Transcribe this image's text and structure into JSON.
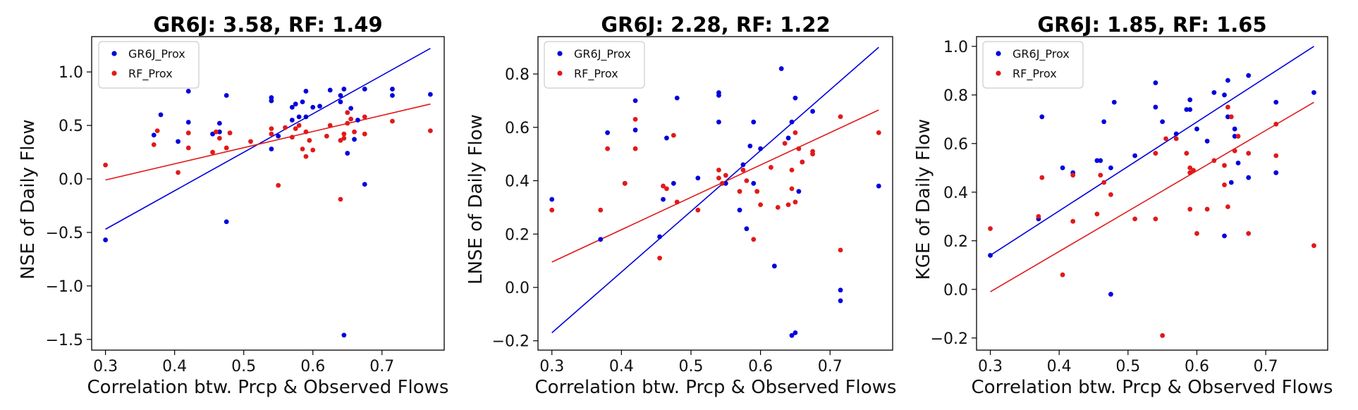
{
  "chart_data": [
    {
      "type": "scatter",
      "title": "GR6J: 3.58, RF: 1.49",
      "xlabel": "Correlation btw. Prcp & Observed Flows",
      "ylabel": "NSE of Daily Flow",
      "xlim": [
        0.28,
        0.79
      ],
      "ylim": [
        -1.6,
        1.33
      ],
      "xticks": [
        0.3,
        0.4,
        0.5,
        0.6,
        0.7
      ],
      "xtick_labels": [
        "0.3",
        "0.4",
        "0.5",
        "0.6",
        "0.7"
      ],
      "yticks": [
        -1.5,
        -1.0,
        -0.5,
        0.0,
        0.5,
        1.0
      ],
      "ytick_labels": [
        "−1.5",
        "−1.0",
        "−0.5",
        "0.0",
        "0.5",
        "1.0"
      ],
      "legend_position": "top-left",
      "series": [
        {
          "name": "GR6J_Prox",
          "color": "#0000dd",
          "points": [
            [
              0.3,
              -0.57
            ],
            [
              0.37,
              0.41
            ],
            [
              0.38,
              0.6
            ],
            [
              0.405,
              0.35
            ],
            [
              0.42,
              0.53
            ],
            [
              0.42,
              0.82
            ],
            [
              0.455,
              0.42
            ],
            [
              0.465,
              0.44
            ],
            [
              0.465,
              0.52
            ],
            [
              0.475,
              -0.4
            ],
            [
              0.475,
              0.78
            ],
            [
              0.54,
              0.76
            ],
            [
              0.54,
              0.73
            ],
            [
              0.54,
              0.28
            ],
            [
              0.55,
              0.4
            ],
            [
              0.57,
              0.55
            ],
            [
              0.57,
              0.67
            ],
            [
              0.575,
              0.7
            ],
            [
              0.58,
              0.58
            ],
            [
              0.585,
              0.72
            ],
            [
              0.59,
              0.82
            ],
            [
              0.59,
              0.58
            ],
            [
              0.6,
              0.67
            ],
            [
              0.61,
              0.68
            ],
            [
              0.625,
              0.83
            ],
            [
              0.64,
              0.78
            ],
            [
              0.64,
              0.72
            ],
            [
              0.645,
              -1.46
            ],
            [
              0.645,
              0.84
            ],
            [
              0.65,
              0.24
            ],
            [
              0.655,
              0.66
            ],
            [
              0.66,
              0.37
            ],
            [
              0.665,
              0.55
            ],
            [
              0.675,
              0.84
            ],
            [
              0.675,
              -0.05
            ],
            [
              0.715,
              0.78
            ],
            [
              0.715,
              0.84
            ],
            [
              0.77,
              0.79
            ]
          ]
        },
        {
          "name": "RF_Prox",
          "color": "#e11919",
          "points": [
            [
              0.3,
              0.13
            ],
            [
              0.37,
              0.32
            ],
            [
              0.375,
              0.45
            ],
            [
              0.405,
              0.06
            ],
            [
              0.42,
              0.43
            ],
            [
              0.42,
              0.29
            ],
            [
              0.455,
              0.25
            ],
            [
              0.46,
              0.44
            ],
            [
              0.465,
              0.38
            ],
            [
              0.475,
              0.29
            ],
            [
              0.48,
              0.43
            ],
            [
              0.51,
              0.35
            ],
            [
              0.54,
              0.47
            ],
            [
              0.54,
              0.42
            ],
            [
              0.55,
              -0.06
            ],
            [
              0.56,
              0.48
            ],
            [
              0.57,
              0.39
            ],
            [
              0.575,
              0.47
            ],
            [
              0.58,
              0.5
            ],
            [
              0.585,
              0.28
            ],
            [
              0.59,
              0.21
            ],
            [
              0.59,
              0.44
            ],
            [
              0.595,
              0.36
            ],
            [
              0.6,
              0.27
            ],
            [
              0.62,
              0.4
            ],
            [
              0.625,
              0.5
            ],
            [
              0.64,
              -0.19
            ],
            [
              0.64,
              0.36
            ],
            [
              0.645,
              0.42
            ],
            [
              0.645,
              0.38
            ],
            [
              0.65,
              0.52
            ],
            [
              0.65,
              0.62
            ],
            [
              0.655,
              0.56
            ],
            [
              0.66,
              0.44
            ],
            [
              0.675,
              0.42
            ],
            [
              0.675,
              0.58
            ],
            [
              0.715,
              0.54
            ],
            [
              0.77,
              0.45
            ]
          ]
        }
      ],
      "fit_lines": [
        {
          "series": "GR6J_Prox",
          "color": "#0000dd",
          "x": [
            0.3,
            0.77
          ],
          "y": [
            -0.47,
            1.22
          ]
        },
        {
          "series": "RF_Prox",
          "color": "#e11919",
          "x": [
            0.3,
            0.77
          ],
          "y": [
            -0.01,
            0.7
          ]
        }
      ]
    },
    {
      "type": "scatter",
      "title": "GR6J: 2.28, RF: 1.22",
      "xlabel": "Correlation btw. Prcp & Observed Flows",
      "ylabel": "LNSE of Daily Flow",
      "xlim": [
        0.28,
        0.79
      ],
      "ylim": [
        -0.235,
        0.94
      ],
      "xticks": [
        0.3,
        0.4,
        0.5,
        0.6,
        0.7
      ],
      "xtick_labels": [
        "0.3",
        "0.4",
        "0.5",
        "0.6",
        "0.7"
      ],
      "yticks": [
        -0.2,
        0.0,
        0.2,
        0.4,
        0.6,
        0.8
      ],
      "ytick_labels": [
        "−0.2",
        "0.0",
        "0.2",
        "0.4",
        "0.6",
        "0.8"
      ],
      "legend_position": "top-left",
      "series": [
        {
          "name": "GR6J_Prox",
          "color": "#0000dd",
          "points": [
            [
              0.3,
              0.33
            ],
            [
              0.37,
              0.18
            ],
            [
              0.38,
              0.58
            ],
            [
              0.405,
              0.39
            ],
            [
              0.42,
              0.59
            ],
            [
              0.42,
              0.7
            ],
            [
              0.455,
              0.19
            ],
            [
              0.46,
              0.33
            ],
            [
              0.465,
              0.56
            ],
            [
              0.475,
              0.39
            ],
            [
              0.48,
              0.71
            ],
            [
              0.51,
              0.41
            ],
            [
              0.54,
              0.73
            ],
            [
              0.54,
              0.72
            ],
            [
              0.54,
              0.62
            ],
            [
              0.55,
              0.39
            ],
            [
              0.57,
              0.29
            ],
            [
              0.575,
              0.46
            ],
            [
              0.58,
              0.22
            ],
            [
              0.585,
              0.53
            ],
            [
              0.59,
              0.62
            ],
            [
              0.59,
              0.39
            ],
            [
              0.6,
              0.52
            ],
            [
              0.62,
              0.08
            ],
            [
              0.63,
              0.82
            ],
            [
              0.64,
              0.56
            ],
            [
              0.645,
              -0.18
            ],
            [
              0.645,
              0.62
            ],
            [
              0.65,
              -0.17
            ],
            [
              0.65,
              0.71
            ],
            [
              0.655,
              0.36
            ],
            [
              0.66,
              0.47
            ],
            [
              0.675,
              0.66
            ],
            [
              0.715,
              -0.01
            ],
            [
              0.715,
              -0.05
            ],
            [
              0.77,
              0.38
            ]
          ]
        },
        {
          "name": "RF_Prox",
          "color": "#e11919",
          "points": [
            [
              0.3,
              0.29
            ],
            [
              0.37,
              0.29
            ],
            [
              0.38,
              0.52
            ],
            [
              0.405,
              0.39
            ],
            [
              0.42,
              0.63
            ],
            [
              0.42,
              0.52
            ],
            [
              0.455,
              0.11
            ],
            [
              0.46,
              0.38
            ],
            [
              0.465,
              0.37
            ],
            [
              0.475,
              0.57
            ],
            [
              0.48,
              0.32
            ],
            [
              0.51,
              0.29
            ],
            [
              0.54,
              0.44
            ],
            [
              0.54,
              0.41
            ],
            [
              0.545,
              0.39
            ],
            [
              0.55,
              0.42
            ],
            [
              0.57,
              0.36
            ],
            [
              0.575,
              0.44
            ],
            [
              0.58,
              0.4
            ],
            [
              0.59,
              0.18
            ],
            [
              0.595,
              0.36
            ],
            [
              0.6,
              0.31
            ],
            [
              0.615,
              0.45
            ],
            [
              0.625,
              0.3
            ],
            [
              0.635,
              0.54
            ],
            [
              0.64,
              0.31
            ],
            [
              0.645,
              0.37
            ],
            [
              0.645,
              0.44
            ],
            [
              0.65,
              0.32
            ],
            [
              0.65,
              0.58
            ],
            [
              0.655,
              0.52
            ],
            [
              0.66,
              0.47
            ],
            [
              0.675,
              0.5
            ],
            [
              0.675,
              0.51
            ],
            [
              0.715,
              0.64
            ],
            [
              0.715,
              0.14
            ],
            [
              0.77,
              0.58
            ]
          ]
        }
      ],
      "fit_lines": [
        {
          "series": "GR6J_Prox",
          "color": "#0000dd",
          "x": [
            0.3,
            0.77
          ],
          "y": [
            -0.17,
            0.9
          ]
        },
        {
          "series": "RF_Prox",
          "color": "#e11919",
          "x": [
            0.3,
            0.77
          ],
          "y": [
            0.095,
            0.665
          ]
        }
      ]
    },
    {
      "type": "scatter",
      "title": "GR6J: 1.85, RF: 1.65",
      "xlabel": "Correlation btw. Prcp & Observed Flows",
      "ylabel": "KGE of Daily Flow",
      "xlim": [
        0.28,
        0.79
      ],
      "ylim": [
        -0.25,
        1.04
      ],
      "xticks": [
        0.3,
        0.4,
        0.5,
        0.6,
        0.7
      ],
      "xtick_labels": [
        "0.3",
        "0.4",
        "0.5",
        "0.6",
        "0.7"
      ],
      "yticks": [
        -0.2,
        0.0,
        0.2,
        0.4,
        0.6,
        0.8,
        1.0
      ],
      "ytick_labels": [
        "−0.2",
        "0.0",
        "0.2",
        "0.4",
        "0.6",
        "0.8",
        "1.0"
      ],
      "legend_position": "top-left",
      "series": [
        {
          "name": "GR6J_Prox",
          "color": "#0000dd",
          "points": [
            [
              0.3,
              0.14
            ],
            [
              0.37,
              0.29
            ],
            [
              0.375,
              0.71
            ],
            [
              0.405,
              0.5
            ],
            [
              0.42,
              0.48
            ],
            [
              0.455,
              0.53
            ],
            [
              0.46,
              0.53
            ],
            [
              0.465,
              0.69
            ],
            [
              0.475,
              -0.02
            ],
            [
              0.475,
              0.5
            ],
            [
              0.48,
              0.77
            ],
            [
              0.51,
              0.55
            ],
            [
              0.54,
              0.85
            ],
            [
              0.54,
              0.75
            ],
            [
              0.55,
              0.69
            ],
            [
              0.57,
              0.64
            ],
            [
              0.585,
              0.74
            ],
            [
              0.59,
              0.78
            ],
            [
              0.59,
              0.74
            ],
            [
              0.6,
              0.66
            ],
            [
              0.615,
              0.61
            ],
            [
              0.625,
              0.81
            ],
            [
              0.64,
              0.8
            ],
            [
              0.64,
              0.22
            ],
            [
              0.645,
              0.71
            ],
            [
              0.645,
              0.86
            ],
            [
              0.65,
              0.44
            ],
            [
              0.655,
              0.63
            ],
            [
              0.655,
              0.66
            ],
            [
              0.66,
              0.52
            ],
            [
              0.675,
              0.88
            ],
            [
              0.675,
              0.46
            ],
            [
              0.715,
              0.77
            ],
            [
              0.715,
              0.48
            ],
            [
              0.77,
              0.81
            ]
          ]
        },
        {
          "name": "RF_Prox",
          "color": "#e11919",
          "points": [
            [
              0.3,
              0.25
            ],
            [
              0.37,
              0.3
            ],
            [
              0.375,
              0.46
            ],
            [
              0.405,
              0.06
            ],
            [
              0.42,
              0.28
            ],
            [
              0.42,
              0.47
            ],
            [
              0.455,
              0.31
            ],
            [
              0.46,
              0.47
            ],
            [
              0.465,
              0.44
            ],
            [
              0.475,
              0.39
            ],
            [
              0.51,
              0.29
            ],
            [
              0.54,
              0.56
            ],
            [
              0.54,
              0.29
            ],
            [
              0.55,
              -0.19
            ],
            [
              0.555,
              0.62
            ],
            [
              0.57,
              0.62
            ],
            [
              0.585,
              0.56
            ],
            [
              0.59,
              0.48
            ],
            [
              0.59,
              0.5
            ],
            [
              0.595,
              0.49
            ],
            [
              0.6,
              0.23
            ],
            [
              0.615,
              0.33
            ],
            [
              0.625,
              0.53
            ],
            [
              0.64,
              0.43
            ],
            [
              0.64,
              0.51
            ],
            [
              0.645,
              0.34
            ],
            [
              0.645,
              0.75
            ],
            [
              0.65,
              0.71
            ],
            [
              0.655,
              0.57
            ],
            [
              0.66,
              0.63
            ],
            [
              0.675,
              0.56
            ],
            [
              0.675,
              0.23
            ],
            [
              0.715,
              0.55
            ],
            [
              0.715,
              0.68
            ],
            [
              0.77,
              0.18
            ],
            [
              0.59,
              0.33
            ]
          ]
        }
      ],
      "fit_lines": [
        {
          "series": "GR6J_Prox",
          "color": "#0000dd",
          "x": [
            0.3,
            0.77
          ],
          "y": [
            0.14,
            1.0
          ]
        },
        {
          "series": "RF_Prox",
          "color": "#e11919",
          "x": [
            0.3,
            0.77
          ],
          "y": [
            -0.01,
            0.77
          ]
        }
      ]
    }
  ]
}
